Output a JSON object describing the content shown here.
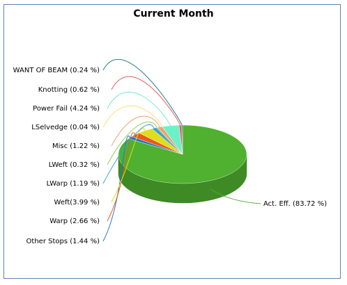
{
  "chart_data": {
    "type": "pie",
    "title": "Current Month",
    "style": "3d",
    "slices": [
      {
        "label": "Act. Eff.",
        "value": 83.72,
        "display": "Act. Eff. (83.72 %)",
        "color": "#4fb12f"
      },
      {
        "label": "Other Stops",
        "value": 1.44,
        "display": "Other Stops (1.44 %)",
        "color": "#1f78c8"
      },
      {
        "label": "Warp",
        "value": 2.66,
        "display": "Warp (2.66 %)",
        "color": "#ea5a1c"
      },
      {
        "label": "Weft",
        "value": 3.99,
        "display": "Weft(3.99 %)",
        "color": "#dede1a"
      },
      {
        "label": "LWarp",
        "value": 1.19,
        "display": "LWarp (1.19 %)",
        "color": "#39a0d8"
      },
      {
        "label": "LWeft",
        "value": 0.32,
        "display": "LWeft (0.32 %)",
        "color": "#8ed05a"
      },
      {
        "label": "Misc",
        "value": 1.22,
        "display": "Misc (1.22 %)",
        "color": "#f2a072"
      },
      {
        "label": "LSelvedge",
        "value": 0.04,
        "display": "LSelvedge (0.04 %)",
        "color": "#f6e07a"
      },
      {
        "label": "Power Fail",
        "value": 4.24,
        "display": "Power Fail (4.24 %)",
        "color": "#6cf0c8"
      },
      {
        "label": "Knotting",
        "value": 0.62,
        "display": "Knotting (0.62 %)",
        "color": "#e85a5a"
      },
      {
        "label": "WANT OF BEAM",
        "value": 0.24,
        "display": "WANT OF BEAM (0.24 %)",
        "color": "#2a7f8f"
      }
    ]
  }
}
